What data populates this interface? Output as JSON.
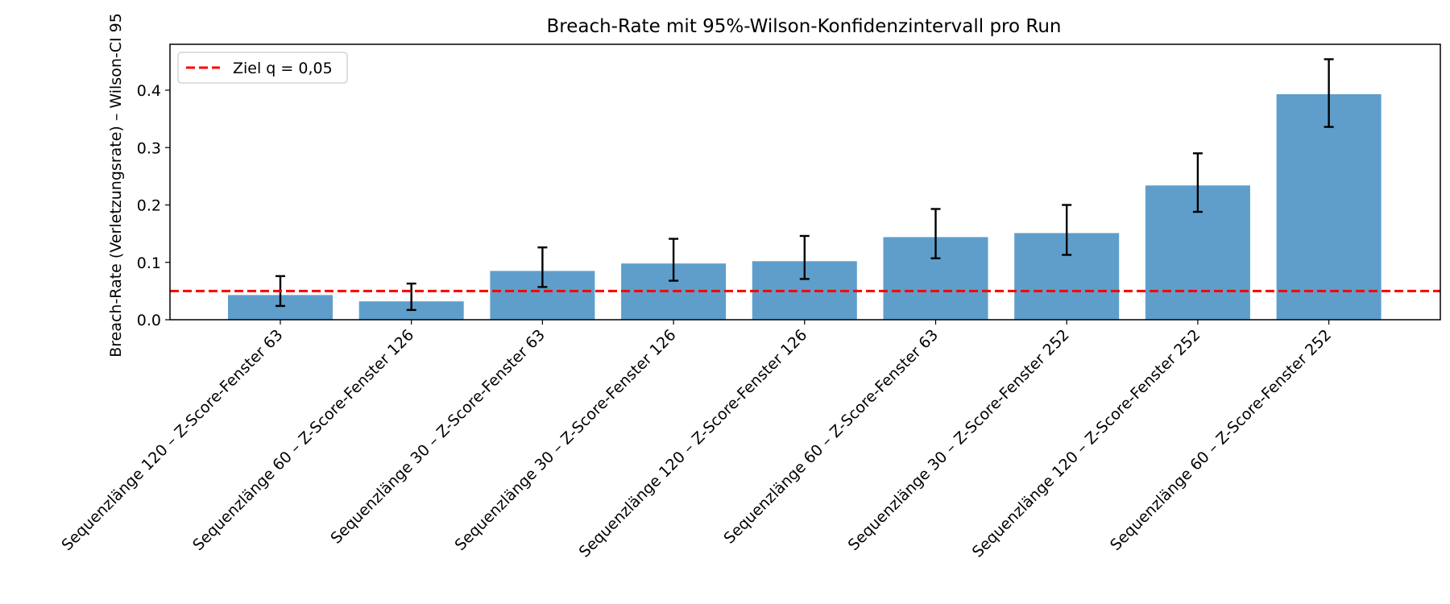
{
  "chart_data": {
    "type": "bar",
    "title": "Breach-Rate mit 95%-Wilson-Konfidenzintervall pro Run",
    "xlabel": "",
    "ylabel": "Breach-Rate (Verletzungsrate) – Wilson-CI 95",
    "ylim": [
      0,
      0.48
    ],
    "yticks": [
      0.0,
      0.1,
      0.2,
      0.3,
      0.4
    ],
    "ytick_labels": [
      "0.0",
      "0.1",
      "0.2",
      "0.3",
      "0.4"
    ],
    "categories": [
      "Sequenzlänge 120 – Z-Score-Fenster 63",
      "Sequenzlänge 60 – Z-Score-Fenster 126",
      "Sequenzlänge 30 – Z-Score-Fenster 63",
      "Sequenzlänge 30 – Z-Score-Fenster 126",
      "Sequenzlänge 120 – Z-Score-Fenster 126",
      "Sequenzlänge 60 – Z-Score-Fenster 63",
      "Sequenzlänge 30 – Z-Score-Fenster 252",
      "Sequenzlänge 120 – Z-Score-Fenster 252",
      "Sequenzlänge 60 – Z-Score-Fenster 252"
    ],
    "values": [
      0.043,
      0.032,
      0.085,
      0.098,
      0.102,
      0.144,
      0.151,
      0.234,
      0.393
    ],
    "ci_lower": [
      0.024,
      0.017,
      0.057,
      0.068,
      0.071,
      0.107,
      0.113,
      0.188,
      0.336
    ],
    "ci_upper": [
      0.076,
      0.063,
      0.126,
      0.141,
      0.146,
      0.193,
      0.2,
      0.29,
      0.454
    ],
    "bar_color": "#5f9ecb",
    "error_bar_color": "#000000",
    "reference_line": {
      "value": 0.05,
      "color": "#ff0000",
      "style": "dashed"
    },
    "legend": {
      "position": "top-left",
      "entries": [
        "Ziel q = 0,05"
      ]
    },
    "grid": false
  }
}
